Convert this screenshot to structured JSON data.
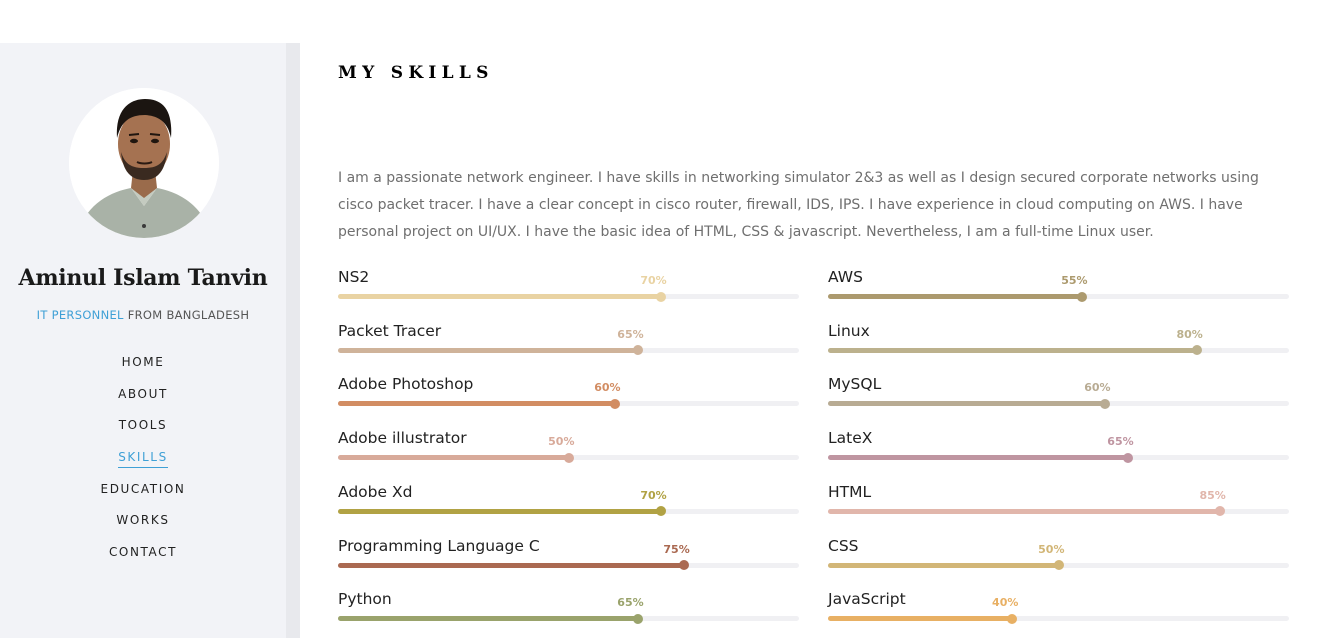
{
  "profile": {
    "name": "Aminul Islam Tanvin",
    "role": "IT PERSONNEL",
    "location": "FROM BANGLADESH"
  },
  "nav": {
    "items": [
      {
        "label": "HOME"
      },
      {
        "label": "ABOUT"
      },
      {
        "label": "TOOLS"
      },
      {
        "label": "SKILLS",
        "active": true
      },
      {
        "label": "EDUCATION"
      },
      {
        "label": "WORKS"
      },
      {
        "label": "CONTACT"
      }
    ],
    "accent": "#3fa0d6"
  },
  "main": {
    "title": "MY SKILLS",
    "description": "I am a passionate network engineer. I have skills in networking simulator 2&3 as well as I design secured corporate networks using cisco packet tracer. I have a clear concept in cisco router, firewall, IDS, IPS. I have experience in cloud computing on AWS. I have personal project on UI/UX. I have the basic idea of HTML, CSS & javascript. Nevertheless, I am a full-time Linux user.",
    "skills_left": [
      {
        "name": "NS2",
        "percent": 70,
        "percent_label": "70%",
        "color": "#e9d3a3"
      },
      {
        "name": "Packet Tracer",
        "percent": 65,
        "percent_label": "65%",
        "color": "#cfb39a"
      },
      {
        "name": "Adobe Photoshop",
        "percent": 60,
        "percent_label": "60%",
        "color": "#d28d63"
      },
      {
        "name": "Adobe illustrator",
        "percent": 50,
        "percent_label": "50%",
        "color": "#d8aa9a"
      },
      {
        "name": "Adobe Xd",
        "percent": 70,
        "percent_label": "70%",
        "color": "#b1a244"
      },
      {
        "name": "Programming Language C",
        "percent": 75,
        "percent_label": "75%",
        "color": "#aa6951"
      },
      {
        "name": "Python",
        "percent": 65,
        "percent_label": "65%",
        "color": "#9aa36c"
      }
    ],
    "skills_right": [
      {
        "name": "AWS",
        "percent": 55,
        "percent_label": "55%",
        "color": "#ac9a6e"
      },
      {
        "name": "Linux",
        "percent": 80,
        "percent_label": "80%",
        "color": "#bcb18d"
      },
      {
        "name": "MySQL",
        "percent": 60,
        "percent_label": "60%",
        "color": "#b8ab93"
      },
      {
        "name": "LateX",
        "percent": 65,
        "percent_label": "65%",
        "color": "#bf95a1"
      },
      {
        "name": "HTML",
        "percent": 85,
        "percent_label": "85%",
        "color": "#e1b6ab"
      },
      {
        "name": "CSS",
        "percent": 50,
        "percent_label": "50%",
        "color": "#d2b677"
      },
      {
        "name": "JavaScript",
        "percent": 40,
        "percent_label": "40%",
        "color": "#e8b064"
      }
    ]
  }
}
